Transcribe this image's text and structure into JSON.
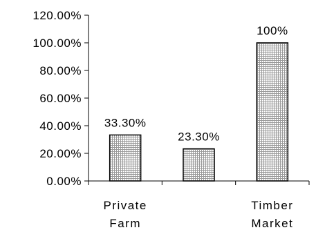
{
  "chart_data": {
    "type": "bar",
    "categories": [
      [
        "Private",
        "Farm"
      ],
      [
        "",
        ""
      ],
      [
        "Timber",
        "Market"
      ]
    ],
    "values": [
      33.3,
      23.3,
      100
    ],
    "data_labels": [
      "33.30%",
      "23.30%",
      "100%"
    ],
    "ylim": [
      0,
      120
    ],
    "yticks": [
      0,
      20,
      40,
      60,
      80,
      100,
      120
    ],
    "ytick_labels": [
      "0.00%",
      "20.00%",
      "40.00%",
      "60.00%",
      "80.00%",
      "100.00%",
      "120.00%"
    ],
    "title": "",
    "xlabel": "",
    "ylabel": "",
    "grid": false,
    "legend": "none",
    "colors": {
      "bar_fill_pattern": "crosshatch-grid",
      "bar_fill_base": "#ffffff",
      "bar_hatch": "#9a9a9a",
      "bar_edge": "#000000",
      "axis": "#000000",
      "text": "#000000"
    }
  }
}
